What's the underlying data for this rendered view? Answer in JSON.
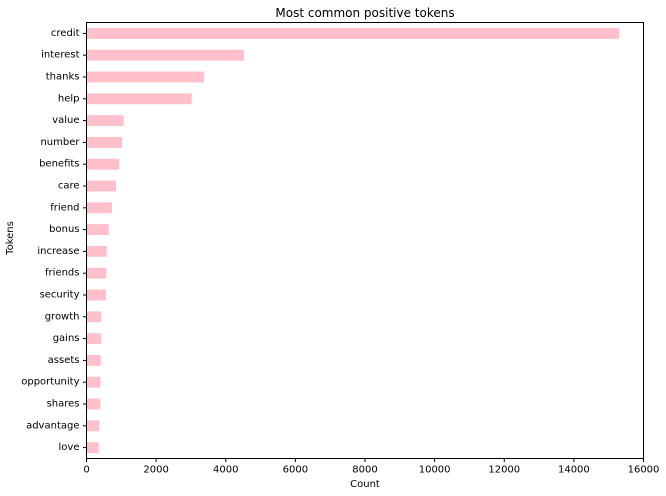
{
  "chart_data": {
    "type": "bar",
    "orientation": "horizontal",
    "title": "Most common positive tokens",
    "xlabel": "Count",
    "ylabel": "Tokens",
    "categories": [
      "credit",
      "interest",
      "thanks",
      "help",
      "value",
      "number",
      "benefits",
      "care",
      "friend",
      "bonus",
      "increase",
      "friends",
      "security",
      "growth",
      "gains",
      "assets",
      "opportunity",
      "shares",
      "advantage",
      "love"
    ],
    "values": [
      15300,
      4520,
      3380,
      3020,
      1070,
      1020,
      940,
      850,
      730,
      640,
      580,
      570,
      560,
      420,
      420,
      410,
      400,
      400,
      370,
      350
    ],
    "xlim": [
      0,
      16000
    ],
    "xticks": [
      "0",
      "2000",
      "4000",
      "6000",
      "8000",
      "10000",
      "12000",
      "14000",
      "16000"
    ],
    "grid": false,
    "legend": "none",
    "bar_color": "#ffc0cb"
  }
}
